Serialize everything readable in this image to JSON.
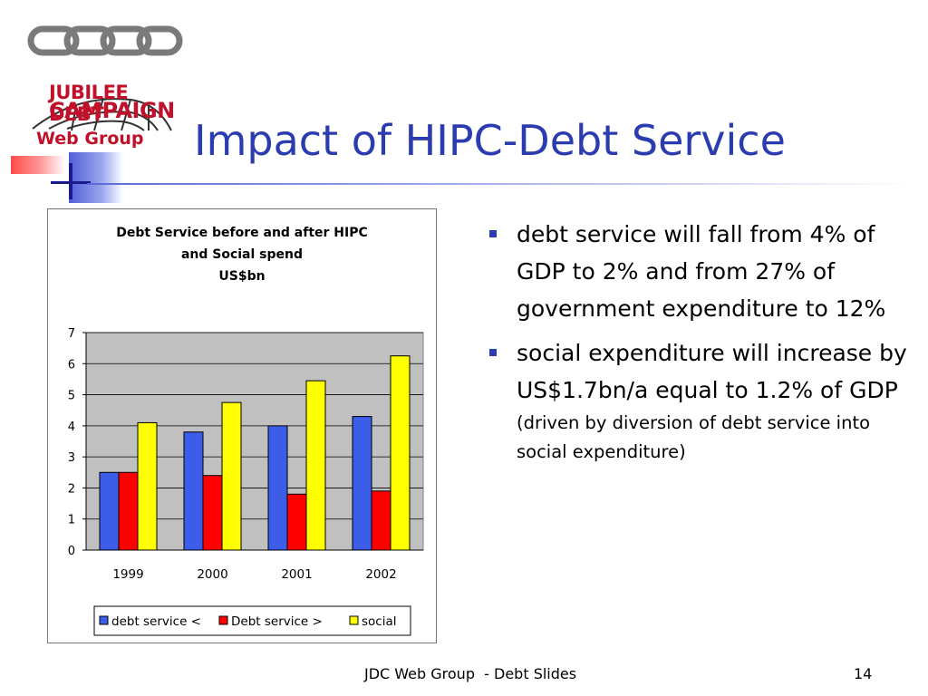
{
  "slide": {
    "title": "Impact of HIPC-Debt Service",
    "footer": "JDC Web Group  - Debt Slides",
    "page_number": "14"
  },
  "logo": {
    "line1": "JUBILEE DEBT",
    "line2": "CAMPAIGN",
    "line3": "Web Group",
    "color": "#c0102a"
  },
  "bullets": [
    {
      "text": "debt service will fall from 4% of GDP to 2% and from 27% of government expenditure to 12%",
      "sub": ""
    },
    {
      "text": "social expenditure will increase by US$1.7bn/a equal to 1.2% of GDP",
      "sub": "(driven by diversion of debt service into social expenditure)"
    }
  ],
  "colors": {
    "title": "#2b3bb0",
    "bullet": "#2b3bb0",
    "plot_bg": "#c0c0c0"
  },
  "chart_data": {
    "type": "bar",
    "title_lines": [
      "Debt Service before and after HIPC",
      "and Social spend",
      "US$bn"
    ],
    "categories": [
      "1999",
      "2000",
      "2001",
      "2002"
    ],
    "series": [
      {
        "name": "debt service <",
        "color": "#3b5de8",
        "values": [
          2.5,
          3.8,
          4.0,
          4.3
        ]
      },
      {
        "name": "Debt service >",
        "color": "#ff0000",
        "values": [
          2.5,
          2.4,
          1.8,
          1.9
        ]
      },
      {
        "name": "social",
        "color": "#ffff00",
        "values": [
          4.1,
          4.75,
          5.45,
          6.25
        ]
      }
    ],
    "ylim": [
      0,
      7
    ],
    "yticks": [
      "0",
      "1",
      "2",
      "3",
      "4",
      "5",
      "6",
      "7"
    ],
    "grid": true,
    "legend": "bottom"
  }
}
